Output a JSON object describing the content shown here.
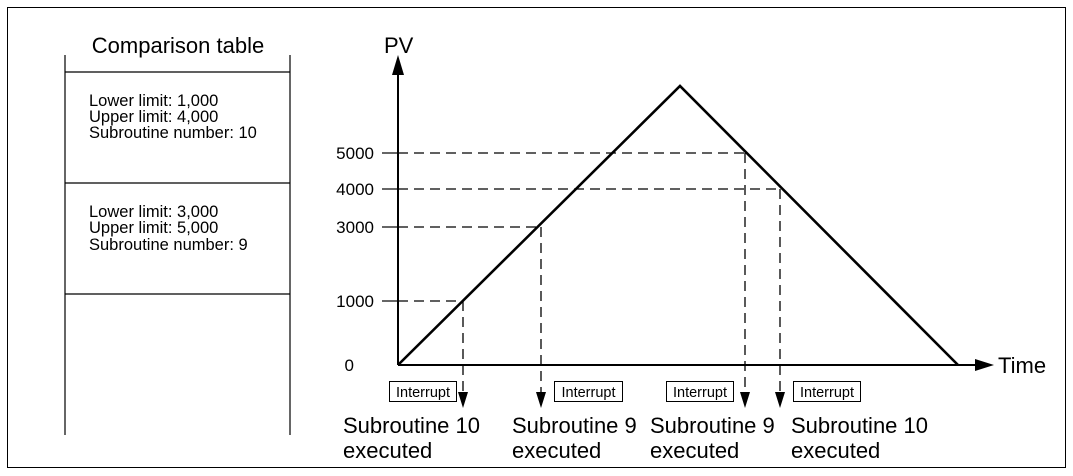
{
  "comparison_table": {
    "title": "Comparison table",
    "entries": [
      {
        "lower_limit": "Lower limit: 1,000",
        "upper_limit": "Upper limit: 4,000",
        "subroutine_number": "Subroutine number: 10"
      },
      {
        "lower_limit": "Lower limit: 3,000",
        "upper_limit": "Upper limit: 5,000",
        "subroutine_number": "Subroutine number: 9"
      }
    ]
  },
  "graph": {
    "y_axis_label": "PV",
    "x_axis_label": "Time",
    "y_tick_labels": [
      "5000",
      "4000",
      "3000",
      "1000",
      "0"
    ],
    "interrupts": [
      {
        "box_label": "Interrupt",
        "caption_line1": "Subroutine 10",
        "caption_line2": "executed"
      },
      {
        "box_label": "Interrupt",
        "caption_line1": "Subroutine 9",
        "caption_line2": "executed"
      },
      {
        "box_label": "Interrupt",
        "caption_line1": "Subroutine 9",
        "caption_line2": "executed"
      },
      {
        "box_label": "Interrupt",
        "caption_line1": "Subroutine 10",
        "caption_line2": "executed"
      }
    ]
  }
}
